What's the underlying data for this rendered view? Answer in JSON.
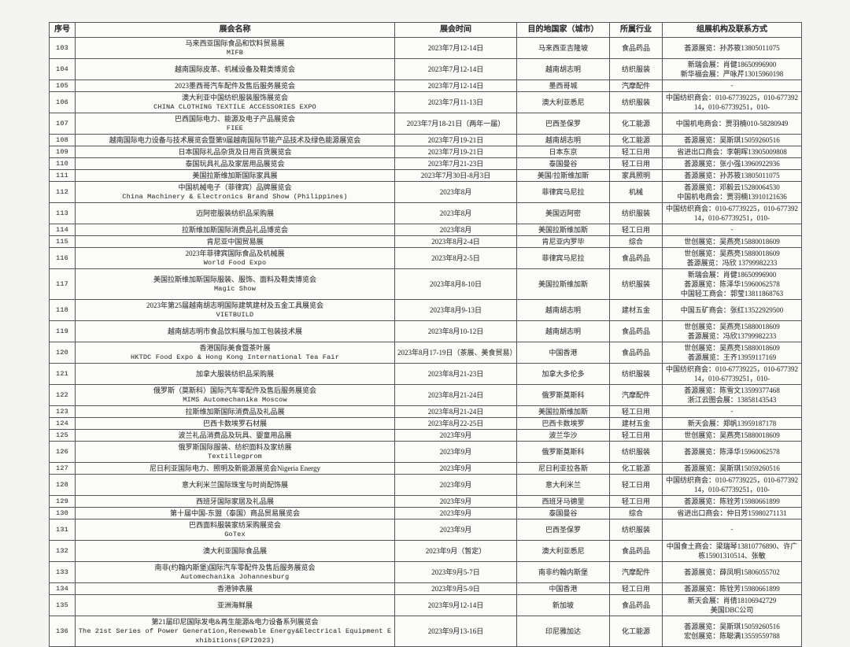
{
  "table": {
    "columns": [
      "序号",
      "展会名称",
      "展会时间",
      "目的地国家（城市）",
      "所属行业",
      "组展机构及联系方式"
    ],
    "rows": [
      {
        "no": "103",
        "name": [
          "马来西亚国际食品和饮料贸易展",
          "MIFB"
        ],
        "time": "2023年7月12-14日",
        "destination": "马来西亚吉隆坡",
        "industry": "食品药品",
        "contact": [
          "荟源展览：孙苏筱13805011075"
        ]
      },
      {
        "no": "104",
        "name": [
          "越南国际皮革、机械设备及鞋类博览会"
        ],
        "time": "2023年7月12-14日",
        "destination": "越南胡志明",
        "industry": "纺织服装",
        "contact": [
          "新瑞会展：肖健18650996900",
          "新华福会展：严咏芹13015960198"
        ]
      },
      {
        "no": "105",
        "name": [
          "2023墨西哥汽车配件及售后服务展览会"
        ],
        "time": "2023年7月12-14日",
        "destination": "墨西哥城",
        "industry": "汽摩配件",
        "contact": [
          "-"
        ]
      },
      {
        "no": "106",
        "name": [
          "澳大利亚中国纺织服装服饰展览会",
          "CHINA CLOTHING TEXTILE ACCESSORIES EXPO"
        ],
        "time": "2023年7月11-13日",
        "destination": "澳大利亚悉尼",
        "industry": "纺织服装",
        "contact": [
          "中国纺织商会：010-67739225，010-67739214，010-67739251，010-"
        ]
      },
      {
        "no": "107",
        "name": [
          "巴西国际电力、能源及电子产品展览会",
          "FIEE"
        ],
        "time": "2023年7月18-21日（两年一届）",
        "destination": "巴西圣保罗",
        "industry": "化工能源",
        "contact": [
          "中国机电商会：贾羽楠010-58280949"
        ]
      },
      {
        "no": "108",
        "name": [
          "越南国际电力设备与技术展览会暨第9届越南国际节能产品技术及绿色能源展览会"
        ],
        "time": "2023年7月19-21日",
        "destination": "越南胡志明",
        "industry": "化工能源",
        "contact": [
          "荟源展览：吴斯琪15059260516"
        ]
      },
      {
        "no": "109",
        "name": [
          "日本国际礼品杂货及日用百货展览会"
        ],
        "time": "2023年7月19-21日",
        "destination": "日本东京",
        "industry": "轻工日用",
        "contact": [
          "省进出口商会：李朝晖13905009808"
        ]
      },
      {
        "no": "110",
        "name": [
          "泰国玩具礼品及家居用品展览会"
        ],
        "time": "2023年7月21-23日",
        "destination": "泰国曼谷",
        "industry": "轻工日用",
        "contact": [
          "荟源展览：张小强13960922936"
        ]
      },
      {
        "no": "111",
        "name": [
          "美国拉斯维加斯国际家具展"
        ],
        "time": "2023年7月30日-8月3日",
        "destination": "美国/拉斯维加斯",
        "industry": "家具照明",
        "contact": [
          "荟源展览：孙苏筱13805011075"
        ]
      },
      {
        "no": "112",
        "name": [
          "中国机械电子（菲律宾）品牌展览会",
          "China Machinery & Electronics Brand Show (Philippines)"
        ],
        "time": "2023年8月",
        "destination": "菲律宾马尼拉",
        "industry": "机械",
        "contact": [
          "荟源展览：邓毅云15280064530",
          "中国机电商会：贾羽楠13910121636"
        ]
      },
      {
        "no": "113",
        "name": [
          "迈阿密服装纺织品采购展"
        ],
        "time": "2023年8月",
        "destination": "美国迈阿密",
        "industry": "纺织服装",
        "contact": [
          "中国纺织商会：010-67739225，010-67739214，010-67739251，010-"
        ]
      },
      {
        "no": "114",
        "name": [
          "拉斯维加斯国际消费品礼品博览会"
        ],
        "time": "2023年8月",
        "destination": "美国拉斯维加斯",
        "industry": "轻工日用",
        "contact": [
          "-"
        ]
      },
      {
        "no": "115",
        "name": [
          "肯尼亚中国贸易展"
        ],
        "time": "2023年8月2-4日",
        "destination": "肯尼亚内罗毕",
        "industry": "综合",
        "contact": [
          "世创展览：吴燕亮15880018609"
        ]
      },
      {
        "no": "116",
        "name": [
          "2023年菲律宾国际食品及机械展",
          "World Food Expo"
        ],
        "time": "2023年8月2-5日",
        "destination": "菲律宾马尼拉",
        "industry": "食品药品",
        "contact": [
          "世创展览：吴燕亮15880018609",
          "荟源展览：冯欣 13799982233"
        ]
      },
      {
        "no": "117",
        "name": [
          "美国拉斯维加斯国际服装、服饰、面料及鞋类博览会",
          "Magic Show"
        ],
        "time": "2023年8月8-10日",
        "destination": "美国拉斯维加斯",
        "industry": "纺织服装",
        "contact": [
          "新瑞会展：肖健18650996900",
          "荟源展览：陈泽华15960062578",
          "中国轻工商会：郭莹13811868763"
        ]
      },
      {
        "no": "118",
        "name": [
          "2023年第25届越南胡志明国际建筑建材及五金工具展览会",
          "VIETBUILD"
        ],
        "time": "2023年8月9-13日",
        "destination": "越南胡志明",
        "industry": "建材五金",
        "contact": [
          "中国五矿商会：张红13522929500"
        ]
      },
      {
        "no": "119",
        "name": [
          "越南胡志明市食品饮料展与加工包装技术展"
        ],
        "time": "2023年8月10-12日",
        "destination": "越南胡志明",
        "industry": "食品药品",
        "contact": [
          "世创展览：吴燕亮15880018609",
          "荟源展览：冯欣13799982233"
        ]
      },
      {
        "no": "120",
        "name": [
          "香港国际美食暨茶叶展",
          "HKTDC Food Expo & Hong Kong International Tea Fair"
        ],
        "time": "2023年8月17-19日（茶展、美食贸易）",
        "destination": "中国香港",
        "industry": "食品药品",
        "contact": [
          "世创展览：吴燕亮15880018609",
          "荟源展览：王齐13959117169"
        ]
      },
      {
        "no": "121",
        "name": [
          "加拿大服装纺织品采购展"
        ],
        "time": "2023年8月21-23日",
        "destination": "加拿大多伦多",
        "industry": "纺织服装",
        "contact": [
          "中国纺织商会：010-67739225，010-67739214，010-67739251，010-"
        ]
      },
      {
        "no": "122",
        "name": [
          "俄罗斯（莫斯科）国际汽车零配件及售后服务展览会",
          "MIMS Automechanika Moscow"
        ],
        "time": "2023年8月21-24日",
        "destination": "俄罗斯莫斯科",
        "industry": "汽摩配件",
        "contact": [
          "荟源展览：陈雪文13599377468",
          "浙江云图会展：13858143543"
        ]
      },
      {
        "no": "123",
        "name": [
          "拉斯维加斯国际消费品及礼品展"
        ],
        "time": "2023年8月21-24日",
        "destination": "美国拉斯维加斯",
        "industry": "轻工日用",
        "contact": [
          "-"
        ]
      },
      {
        "no": "124",
        "name": [
          "巴西卡数埃罗石材展"
        ],
        "time": "2023年8月22-25日",
        "destination": "巴西卡数埃罗",
        "industry": "建材五金",
        "contact": [
          "新天会展：郑帆13959187178"
        ]
      },
      {
        "no": "125",
        "name": [
          "波兰礼品消费品及玩具、婴童用品展"
        ],
        "time": "2023年9月",
        "destination": "波兰华沙",
        "industry": "轻工日用",
        "contact": [
          "世创展览：吴燕亮15880018609"
        ]
      },
      {
        "no": "126",
        "name": [
          "俄罗斯国际服装、纺织面料及家纺展",
          "Textillegprom"
        ],
        "time": "2023年9月",
        "destination": "俄罗斯莫斯科",
        "industry": "纺织服装",
        "contact": [
          "荟源展览：陈泽华15960062578"
        ]
      },
      {
        "no": "127",
        "name": [
          "尼日利亚国际电力、照明及新能源展览会Nigeria Energy"
        ],
        "time": "2023年9月",
        "destination": "尼日利亚拉各斯",
        "industry": "化工能源",
        "contact": [
          "荟源展览：吴斯琪15059260516"
        ]
      },
      {
        "no": "128",
        "name": [
          "意大利米兰国际珠宝与时尚配饰展"
        ],
        "time": "2023年9月",
        "destination": "意大利米兰",
        "industry": "轻工日用",
        "contact": [
          "中国纺织商会：010-67739225，010-67739214，010-67739251，010-"
        ]
      },
      {
        "no": "129",
        "name": [
          "西班牙国际家居及礼品展"
        ],
        "time": "2023年9月",
        "destination": "西班牙马德里",
        "industry": "轻工日用",
        "contact": [
          "荟源展览：陈铨芳15980661899"
        ]
      },
      {
        "no": "130",
        "name": [
          "第十届中国-东盟（泰国）商品贸易展览会"
        ],
        "time": "2023年9月",
        "destination": "泰国曼谷",
        "industry": "综合",
        "contact": [
          "省进出口商会：仲日芳15980271131"
        ]
      },
      {
        "no": "131",
        "name": [
          "巴西面料服装家纺采购展览会",
          "GoTex"
        ],
        "time": "2023年9月",
        "destination": "巴西圣保罗",
        "industry": "纺织服装",
        "contact": [
          "-"
        ]
      },
      {
        "no": "132",
        "name": [
          "澳大利亚国际食品展"
        ],
        "time": "2023年9月（暂定）",
        "destination": "澳大利亚悉尼",
        "industry": "食品药品",
        "contact": [
          "中国食土商会：梁瑞琴13810776890、许广栋15901310514、张敏"
        ]
      },
      {
        "no": "133",
        "name": [
          "南非(约翰内斯堡)国际汽车零配件及售后服务展览会",
          "Automechanika Johannesburg"
        ],
        "time": "2023年9月5-7日",
        "destination": "南非约翰内斯堡",
        "industry": "汽摩配件",
        "contact": [
          "荟源展览：薛凤明15806055702"
        ]
      },
      {
        "no": "134",
        "name": [
          "香港钟表展"
        ],
        "time": "2023年9月5-9日",
        "destination": "中国香港",
        "industry": "轻工日用",
        "contact": [
          "荟源展览：陈铨芳15980661899"
        ]
      },
      {
        "no": "135",
        "name": [
          "亚洲海鲜展"
        ],
        "time": "2023年9月12-14日",
        "destination": "新加坡",
        "industry": "食品药品",
        "contact": [
          "新天会展：肖倩18106942729",
          "美国DBC公司"
        ]
      },
      {
        "no": "136",
        "name": [
          "第21届印尼国际发电&再生能源&电力设备系列展览会",
          "The 21st Series of Power Generation,Renewable Energy&Electrical Equipment Exhibitions(EPI2023)"
        ],
        "time": "2023年9月13-16日",
        "destination": "印尼雅加达",
        "industry": "化工能源",
        "contact": [
          "荟源展览：吴斯琪15059260516",
          "宏创展览：陈聪满13559559788"
        ]
      }
    ]
  }
}
